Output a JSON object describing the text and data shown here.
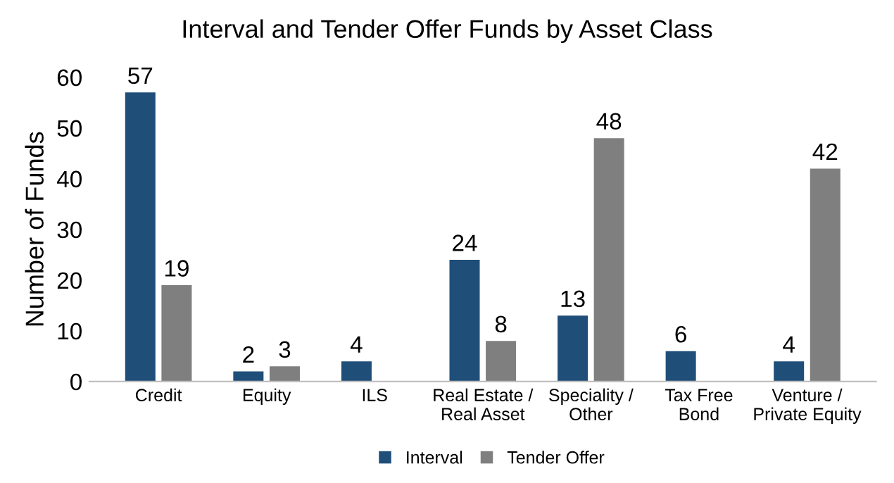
{
  "chart_data": {
    "type": "bar",
    "title": "Interval and Tender Offer Funds by Asset Class",
    "ylabel": "Number of Funds",
    "categories": [
      "Credit",
      "Equity",
      "ILS",
      "Real Estate /\nReal Asset",
      "Speciality /\nOther",
      "Tax Free\nBond",
      "Venture /\nPrivate Equity"
    ],
    "series": [
      {
        "name": "Interval",
        "color": "#1f4e79",
        "values": [
          57,
          2,
          4,
          24,
          13,
          6,
          4
        ]
      },
      {
        "name": "Tender Offer",
        "color": "#7f7f7f",
        "values": [
          19,
          3,
          null,
          8,
          48,
          null,
          42
        ]
      }
    ],
    "ylim": [
      0,
      60
    ],
    "yticks": [
      0,
      10,
      20,
      30,
      40,
      50,
      60
    ],
    "grid": false,
    "legend": "bottom",
    "data_labels": true
  }
}
